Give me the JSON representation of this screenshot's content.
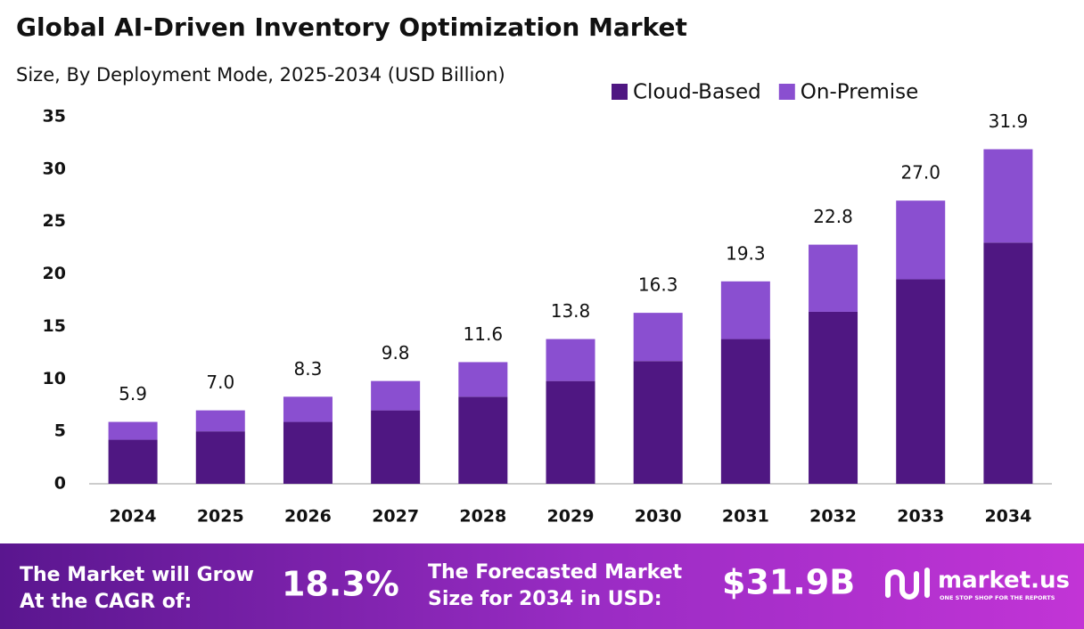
{
  "chart_data": {
    "type": "stacked_bar",
    "title": "Global AI-Driven Inventory Optimization Market",
    "subtitle": "Size, By Deployment Mode, 2025-2034 (USD Billion)",
    "categories": [
      "2024",
      "2025",
      "2026",
      "2027",
      "2028",
      "2029",
      "2030",
      "2031",
      "2032",
      "2033",
      "2034"
    ],
    "series": [
      {
        "name": "Cloud-Based",
        "color": "#4f1782",
        "values": [
          4.2,
          5.0,
          5.9,
          7.0,
          8.3,
          9.8,
          11.7,
          13.8,
          16.4,
          19.5,
          23.0
        ]
      },
      {
        "name": "On-Premise",
        "color": "#8a4fd0",
        "values": [
          1.7,
          2.0,
          2.4,
          2.8,
          3.3,
          4.0,
          4.6,
          5.5,
          6.4,
          7.5,
          8.9
        ]
      }
    ],
    "totals": {
      "values": [
        5.9,
        7.0,
        8.3,
        9.8,
        11.6,
        13.8,
        16.3,
        19.3,
        22.8,
        27.0,
        31.9
      ],
      "value_labels": [
        "5.9",
        "7.0",
        "8.3",
        "9.8",
        "11.6",
        "13.8",
        "16.3",
        "19.3",
        "22.8",
        "27.0",
        "31.9"
      ]
    },
    "ylim": [
      0,
      35
    ],
    "yticks": [
      0,
      5,
      10,
      15,
      20,
      25,
      30,
      35
    ],
    "grid": false,
    "legend": "top-right"
  },
  "footer": {
    "cagr_text": [
      "The Market will Grow",
      "At the CAGR of:"
    ],
    "cagr": "18.3%",
    "size_text": [
      "The Forecasted Market",
      "Size for 2034 in USD:"
    ],
    "size": "$31.9B",
    "brand": "market.us",
    "tagline": "ONE STOP SHOP FOR THE REPORTS"
  }
}
